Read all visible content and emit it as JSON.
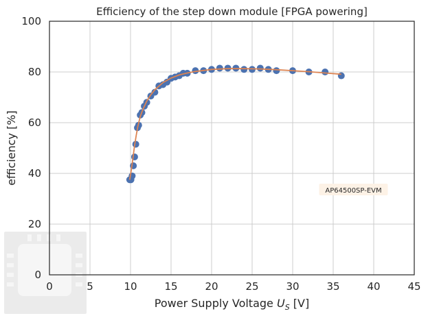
{
  "chart_data": {
    "type": "scatter",
    "title": "Efficiency of the step down module [FPGA powering]",
    "xlabel_prefix": "Power Supply Voltage ",
    "xlabel_var": "U",
    "xlabel_sub": "S",
    "xlabel_suffix": " [V]",
    "ylabel": "efficiency [%]",
    "xlim": [
      0,
      45
    ],
    "ylim": [
      0,
      100
    ],
    "xticks": [
      0,
      5,
      10,
      15,
      20,
      25,
      30,
      35,
      40,
      45
    ],
    "yticks": [
      0,
      20,
      40,
      60,
      80,
      100
    ],
    "grid": true,
    "annotation": "AP64500SP-EVM",
    "annotation_at": [
      37.5,
      33.5
    ],
    "colors": {
      "points": "#4c72b0",
      "fit_line": "#dd8452",
      "grid": "#cccccc",
      "annotation_box": "#fdf2e6"
    },
    "series": [
      {
        "kind": "points",
        "x": [
          9.9,
          10.05,
          10.2,
          10.35,
          10.5,
          10.65,
          10.85,
          11.0,
          11.2,
          11.4,
          11.7,
          12.0,
          12.5,
          13.0,
          13.5,
          14.0,
          14.5,
          15.0,
          15.5,
          16.0,
          16.5,
          17.0,
          18.0,
          19.0,
          20.0,
          21.0,
          22.0,
          23.0,
          24.0,
          25.0,
          26.0,
          27.0,
          28.0,
          30.0,
          32.0,
          34.0,
          36.0
        ],
        "y": [
          37.5,
          37.5,
          39.0,
          43.0,
          46.5,
          51.5,
          58.0,
          59.0,
          63.0,
          64.0,
          66.5,
          68.0,
          70.5,
          72.0,
          74.5,
          75.0,
          76.0,
          77.5,
          78.0,
          78.5,
          79.5,
          79.5,
          80.5,
          80.5,
          81.0,
          81.5,
          81.5,
          81.5,
          81.0,
          81.0,
          81.5,
          81.0,
          80.5,
          80.5,
          80.0,
          80.0,
          78.5
        ]
      },
      {
        "kind": "fit_line",
        "x": [
          9.9,
          10.1,
          10.3,
          10.5,
          10.7,
          10.9,
          11.2,
          11.5,
          12.0,
          12.5,
          13.0,
          14.0,
          15.0,
          16.0,
          17.0,
          18.0,
          20.0,
          22.0,
          24.0,
          26.0,
          28.0,
          30.0,
          32.0,
          34.0,
          36.0
        ],
        "y": [
          37.5,
          41.5,
          46.0,
          51.0,
          55.0,
          58.5,
          62.5,
          65.0,
          68.5,
          71.0,
          73.0,
          75.8,
          77.6,
          78.8,
          79.6,
          80.2,
          81.0,
          81.3,
          81.3,
          81.2,
          80.9,
          80.5,
          80.1,
          79.6,
          79.1
        ]
      }
    ]
  }
}
